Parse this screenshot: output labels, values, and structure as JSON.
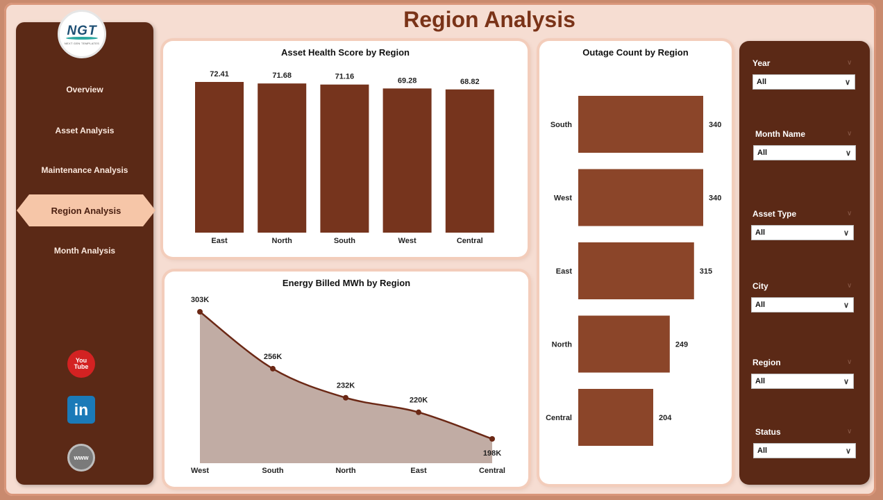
{
  "page": {
    "title": "Region Analysis"
  },
  "logo": {
    "mark": "NGT",
    "sub": "NEXT GEN TEMPLATES"
  },
  "nav": [
    {
      "label": "Overview"
    },
    {
      "label": "Asset Analysis"
    },
    {
      "label": "Maintenance Analysis"
    },
    {
      "label": "Region Analysis",
      "active": true
    },
    {
      "label": "Month Analysis"
    }
  ],
  "social": {
    "youtube": "You Tube",
    "linkedin": "in",
    "web": "www"
  },
  "colors": {
    "sidebar": "#5b2916",
    "bar_dark": "#76341d",
    "bar_light": "#8b4529",
    "area": "#c1aca4",
    "line": "#6b2815"
  },
  "chart_data": [
    {
      "type": "bar",
      "title": "Asset Health Score by Region",
      "categories": [
        "East",
        "North",
        "South",
        "West",
        "Central"
      ],
      "values": [
        72.41,
        71.68,
        71.16,
        69.28,
        68.82
      ],
      "data_labels": [
        "72.41",
        "71.68",
        "71.16",
        "69.28",
        "68.82"
      ]
    },
    {
      "type": "area",
      "title": "Energy Billed MWh by Region",
      "categories": [
        "West",
        "South",
        "North",
        "East",
        "Central"
      ],
      "values": [
        303,
        256,
        232,
        220,
        198
      ],
      "data_labels": [
        "303K",
        "256K",
        "232K",
        "220K",
        "198K"
      ]
    },
    {
      "type": "bar",
      "orientation": "horizontal",
      "title": "Outage Count by Region",
      "categories": [
        "South",
        "West",
        "East",
        "North",
        "Central"
      ],
      "values": [
        340,
        340,
        315,
        249,
        204
      ],
      "data_labels": [
        "340",
        "340",
        "315",
        "249",
        "204"
      ]
    }
  ],
  "filters": [
    {
      "label": "Year",
      "value": "All"
    },
    {
      "label": "Month Name",
      "value": "All"
    },
    {
      "label": "Asset Type",
      "value": "All"
    },
    {
      "label": "City",
      "value": "All"
    },
    {
      "label": "Region",
      "value": "All"
    },
    {
      "label": "Status",
      "value": "All"
    }
  ]
}
